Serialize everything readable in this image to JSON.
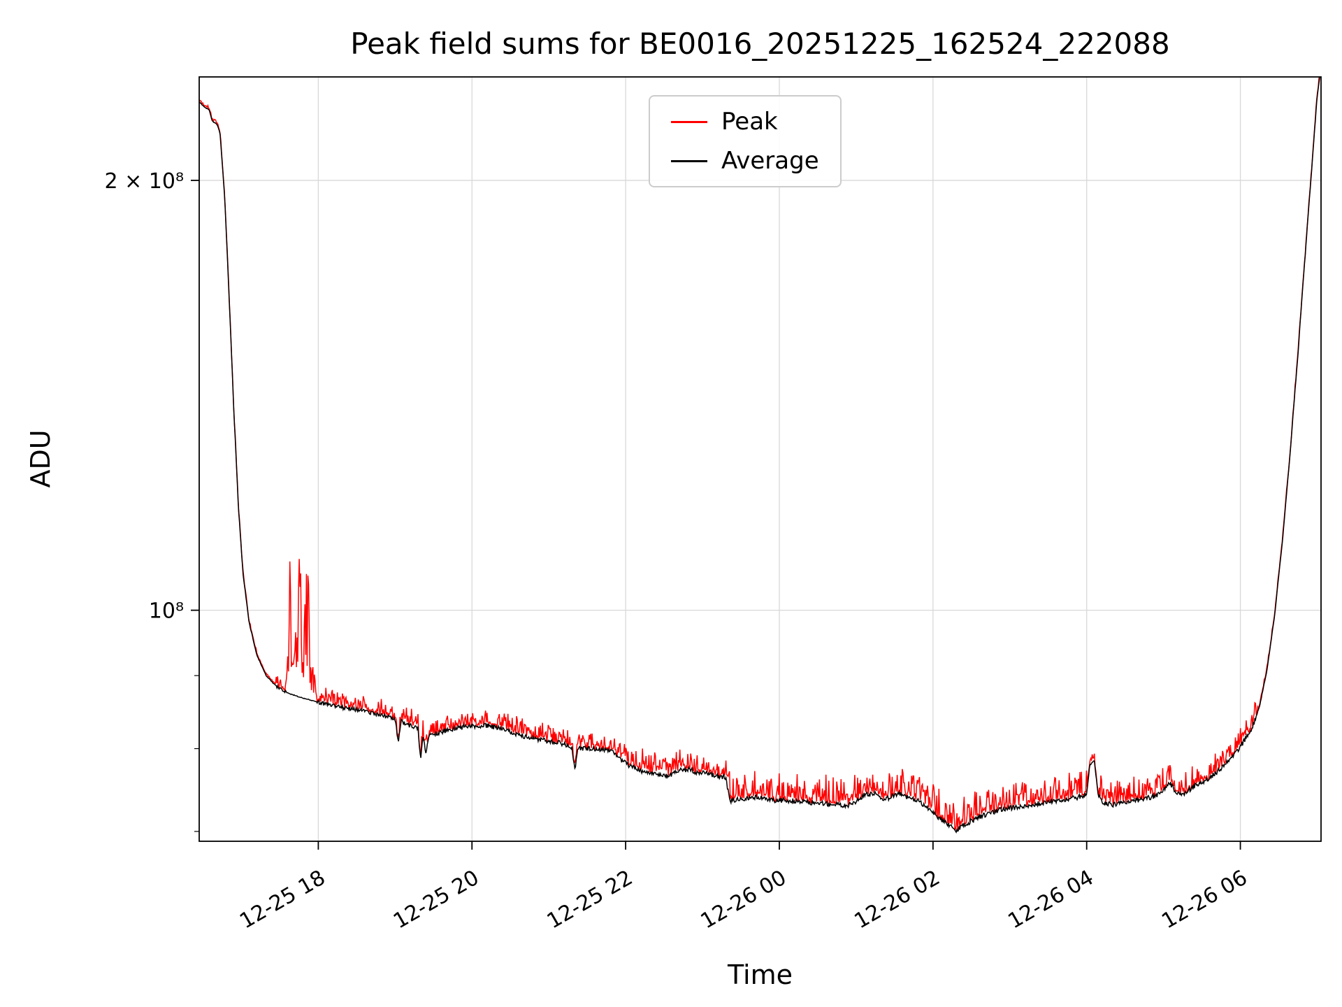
{
  "title": "Peak field sums for BE0016_20251225_162524_222088",
  "axes": {
    "xlabel": "Time",
    "ylabel": "ADU"
  },
  "legend": {
    "entries": [
      {
        "label": "Peak",
        "color": "#ff0000"
      },
      {
        "label": "Average",
        "color": "#000000"
      }
    ]
  },
  "chart_data": {
    "type": "line",
    "title": "Peak field sums for BE0016_20251225_162524_222088",
    "xlabel": "Time",
    "ylabel": "ADU",
    "x_unit": "hours after 2025-12-25 16:00",
    "x_range": [
      0.45,
      15.05
    ],
    "y_scale": "log",
    "y_range": [
      68900000,
      236300000
    ],
    "x_ticks": [
      {
        "t": 2,
        "label": "12-25 18"
      },
      {
        "t": 4,
        "label": "12-25 20"
      },
      {
        "t": 6,
        "label": "12-25 22"
      },
      {
        "t": 8,
        "label": "12-26 00"
      },
      {
        "t": 10,
        "label": "12-26 02"
      },
      {
        "t": 12,
        "label": "12-26 04"
      },
      {
        "t": 14,
        "label": "12-26 06"
      }
    ],
    "y_ticks": [
      {
        "value": 100000000,
        "label": "10⁸"
      },
      {
        "value": 200000000,
        "label": "2 × 10⁸"
      }
    ],
    "y_minor_ticks": [
      70000000,
      80000000,
      90000000
    ],
    "grid_color": "#d8d8d8",
    "spine_color": "#000000",
    "value_scale": 10000000,
    "series": [
      {
        "name": "Peak",
        "color": "#ff0000",
        "role": "noisy upper envelope of field sums"
      },
      {
        "name": "Average",
        "color": "#000000",
        "role": "baseline average of field sums"
      }
    ],
    "average_keypoints": [
      [
        0.45,
        22.7
      ],
      [
        0.52,
        22.5
      ],
      [
        0.58,
        22.4
      ],
      [
        0.62,
        22.0
      ],
      [
        0.68,
        21.9
      ],
      [
        0.72,
        21.6
      ],
      [
        0.78,
        19.5
      ],
      [
        0.84,
        16.5
      ],
      [
        0.9,
        13.8
      ],
      [
        0.96,
        11.8
      ],
      [
        1.02,
        10.6
      ],
      [
        1.1,
        9.8
      ],
      [
        1.2,
        9.3
      ],
      [
        1.32,
        9.0
      ],
      [
        1.45,
        8.85
      ],
      [
        1.6,
        8.75
      ],
      [
        1.8,
        8.68
      ],
      [
        2.0,
        8.62
      ],
      [
        2.3,
        8.55
      ],
      [
        2.6,
        8.5
      ],
      [
        2.9,
        8.42
      ],
      [
        3.0,
        8.38
      ],
      [
        3.04,
        8.1
      ],
      [
        3.08,
        8.36
      ],
      [
        3.2,
        8.3
      ],
      [
        3.3,
        8.26
      ],
      [
        3.33,
        7.85
      ],
      [
        3.36,
        8.18
      ],
      [
        3.4,
        7.95
      ],
      [
        3.44,
        8.18
      ],
      [
        3.6,
        8.22
      ],
      [
        3.8,
        8.27
      ],
      [
        4.0,
        8.3
      ],
      [
        4.2,
        8.3
      ],
      [
        4.4,
        8.26
      ],
      [
        4.6,
        8.18
      ],
      [
        4.8,
        8.13
      ],
      [
        5.0,
        8.1
      ],
      [
        5.2,
        8.06
      ],
      [
        5.3,
        8.02
      ],
      [
        5.34,
        7.72
      ],
      [
        5.38,
        8.0
      ],
      [
        5.6,
        8.0
      ],
      [
        5.8,
        7.98
      ],
      [
        5.95,
        7.85
      ],
      [
        6.05,
        7.78
      ],
      [
        6.2,
        7.72
      ],
      [
        6.4,
        7.68
      ],
      [
        6.55,
        7.65
      ],
      [
        6.7,
        7.72
      ],
      [
        6.85,
        7.74
      ],
      [
        6.95,
        7.68
      ],
      [
        7.05,
        7.7
      ],
      [
        7.15,
        7.66
      ],
      [
        7.3,
        7.64
      ],
      [
        7.36,
        7.35
      ],
      [
        7.5,
        7.38
      ],
      [
        7.7,
        7.4
      ],
      [
        7.9,
        7.36
      ],
      [
        8.1,
        7.36
      ],
      [
        8.3,
        7.34
      ],
      [
        8.5,
        7.33
      ],
      [
        8.7,
        7.31
      ],
      [
        8.9,
        7.3
      ],
      [
        9.0,
        7.34
      ],
      [
        9.1,
        7.42
      ],
      [
        9.25,
        7.44
      ],
      [
        9.35,
        7.36
      ],
      [
        9.45,
        7.4
      ],
      [
        9.55,
        7.44
      ],
      [
        9.65,
        7.4
      ],
      [
        9.8,
        7.36
      ],
      [
        9.9,
        7.28
      ],
      [
        10.0,
        7.22
      ],
      [
        10.1,
        7.14
      ],
      [
        10.2,
        7.07
      ],
      [
        10.3,
        7.01
      ],
      [
        10.38,
        7.06
      ],
      [
        10.5,
        7.12
      ],
      [
        10.62,
        7.17
      ],
      [
        10.75,
        7.21
      ],
      [
        10.9,
        7.26
      ],
      [
        11.1,
        7.28
      ],
      [
        11.3,
        7.31
      ],
      [
        11.5,
        7.34
      ],
      [
        11.7,
        7.37
      ],
      [
        11.9,
        7.4
      ],
      [
        12.0,
        7.43
      ],
      [
        12.04,
        7.8
      ],
      [
        12.1,
        7.84
      ],
      [
        12.15,
        7.42
      ],
      [
        12.22,
        7.32
      ],
      [
        12.35,
        7.31
      ],
      [
        12.5,
        7.34
      ],
      [
        12.7,
        7.37
      ],
      [
        12.9,
        7.41
      ],
      [
        13.0,
        7.49
      ],
      [
        13.08,
        7.57
      ],
      [
        13.15,
        7.47
      ],
      [
        13.25,
        7.43
      ],
      [
        13.4,
        7.53
      ],
      [
        13.6,
        7.63
      ],
      [
        13.8,
        7.79
      ],
      [
        13.95,
        7.96
      ],
      [
        14.05,
        8.1
      ],
      [
        14.15,
        8.26
      ],
      [
        14.25,
        8.56
      ],
      [
        14.35,
        9.1
      ],
      [
        14.45,
        9.95
      ],
      [
        14.55,
        11.2
      ],
      [
        14.65,
        12.9
      ],
      [
        14.75,
        15.1
      ],
      [
        14.85,
        17.9
      ],
      [
        14.93,
        20.4
      ],
      [
        15.0,
        22.9
      ],
      [
        15.05,
        24.0
      ]
    ],
    "peak_noise_segments": [
      [
        0.45,
        0.76,
        0.004
      ],
      [
        0.76,
        1.45,
        0.005
      ],
      [
        1.45,
        1.58,
        0.018
      ],
      [
        1.98,
        3.0,
        0.022
      ],
      [
        3.0,
        6.0,
        0.026
      ],
      [
        6.0,
        7.35,
        0.035
      ],
      [
        7.35,
        9.0,
        0.045
      ],
      [
        9.0,
        10.0,
        0.04
      ],
      [
        10.0,
        11.0,
        0.048
      ],
      [
        11.0,
        12.0,
        0.042
      ],
      [
        12.0,
        12.15,
        0.012
      ],
      [
        12.15,
        13.5,
        0.038
      ],
      [
        13.5,
        14.2,
        0.028
      ],
      [
        14.2,
        15.05,
        0.006
      ]
    ],
    "peak_spike_cluster": {
      "range": [
        1.58,
        1.98
      ],
      "envelope": [
        [
          1.58,
          0.04
        ],
        [
          1.61,
          0.1
        ],
        [
          1.635,
          0.31
        ],
        [
          1.66,
          0.18
        ],
        [
          1.685,
          0.31
        ],
        [
          1.71,
          0.1
        ],
        [
          1.74,
          0.26
        ],
        [
          1.77,
          0.31
        ],
        [
          1.8,
          0.12
        ],
        [
          1.83,
          0.2
        ],
        [
          1.86,
          0.3
        ],
        [
          1.89,
          0.1
        ],
        [
          1.93,
          0.06
        ],
        [
          1.98,
          0.03
        ]
      ]
    }
  }
}
